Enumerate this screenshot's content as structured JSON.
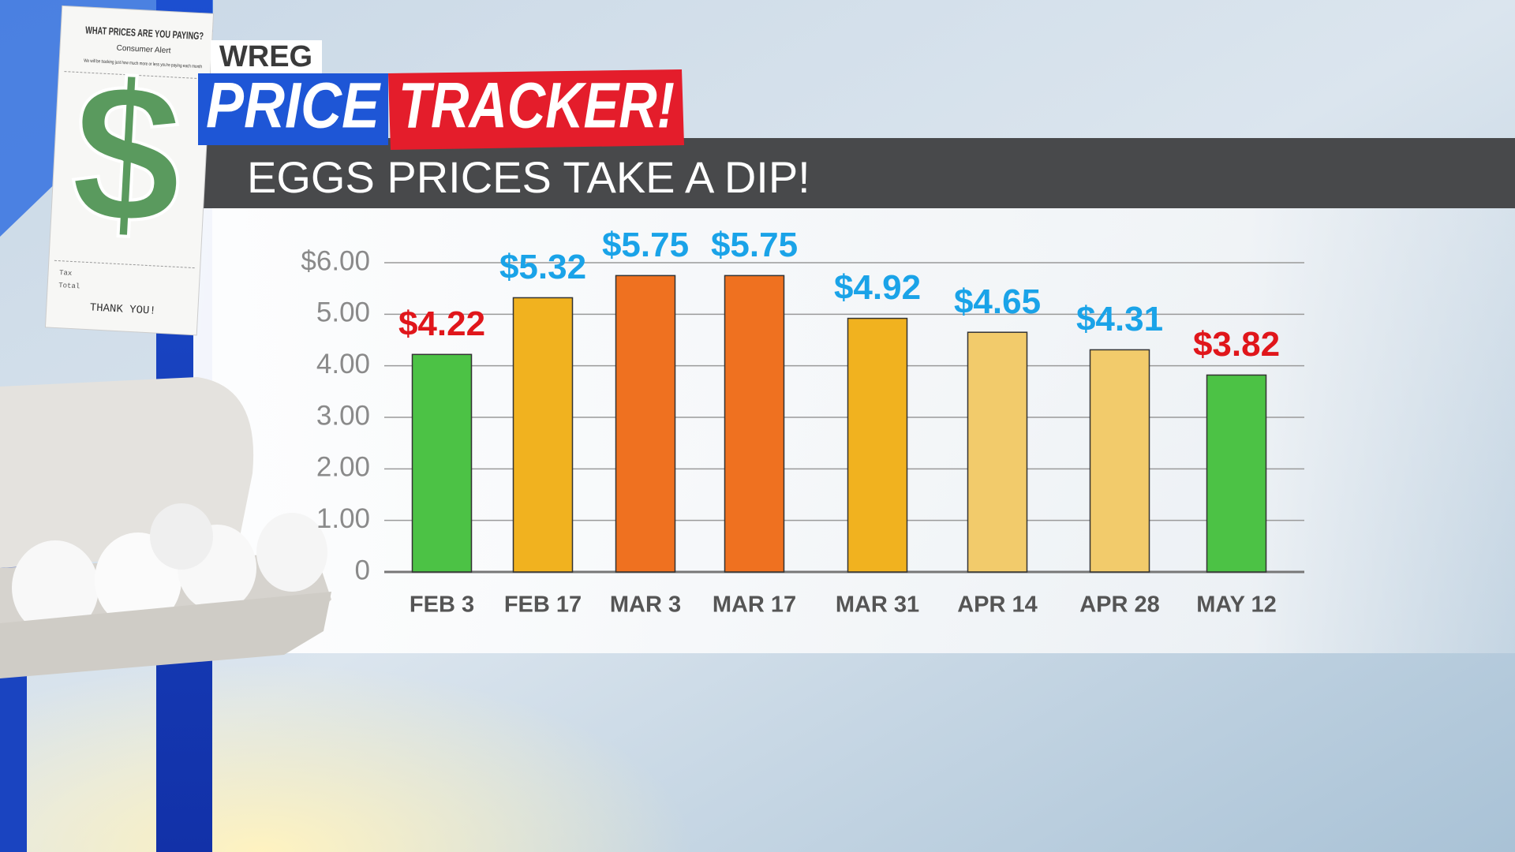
{
  "header": {
    "station": "WREG",
    "brand_left": "PRICE",
    "brand_right": "TRACKER!"
  },
  "receipt": {
    "title": "WHAT PRICES ARE YOU PAYING?",
    "subtitle": "Consumer Alert",
    "note": "We will be tracking just how much more or less you're paying each month",
    "symbol": "$",
    "tax": "Tax",
    "total": "Total",
    "thanks": "THANK YOU!"
  },
  "chart_data": {
    "type": "bar",
    "title": "EGGS PRICES TAKE A DIP!",
    "categories": [
      "FEB 3",
      "FEB 17",
      "MAR 3",
      "MAR 17",
      "MAR 31",
      "APR 14",
      "APR 28",
      "MAY 12"
    ],
    "values": [
      4.22,
      5.32,
      5.75,
      5.75,
      4.92,
      4.65,
      4.31,
      3.82
    ],
    "value_labels": [
      "$4.22",
      "$5.32",
      "$5.75",
      "$5.75",
      "$4.92",
      "$4.65",
      "$4.31",
      "$3.82"
    ],
    "colors": [
      "#4cc245",
      "#f1b21f",
      "#ef7120",
      "#ef7120",
      "#f1b21f",
      "#f2cb6b",
      "#f2cb6b",
      "#4cc245"
    ],
    "label_colors": [
      "#e0161b",
      "#1aa3e8",
      "#1aa3e8",
      "#1aa3e8",
      "#1aa3e8",
      "#1aa3e8",
      "#1aa3e8",
      "#e0161b"
    ],
    "ylim": [
      0,
      6
    ],
    "yticks": [
      0,
      {
        "value": 1,
        "label": "1.00"
      },
      {
        "value": 2,
        "label": "2.00"
      },
      {
        "value": 3,
        "label": "3.00"
      },
      {
        "value": 4,
        "label": "4.00"
      },
      {
        "value": 5,
        "label": "5.00"
      },
      {
        "value": 6,
        "label": "$6.00"
      }
    ],
    "grid": true
  }
}
